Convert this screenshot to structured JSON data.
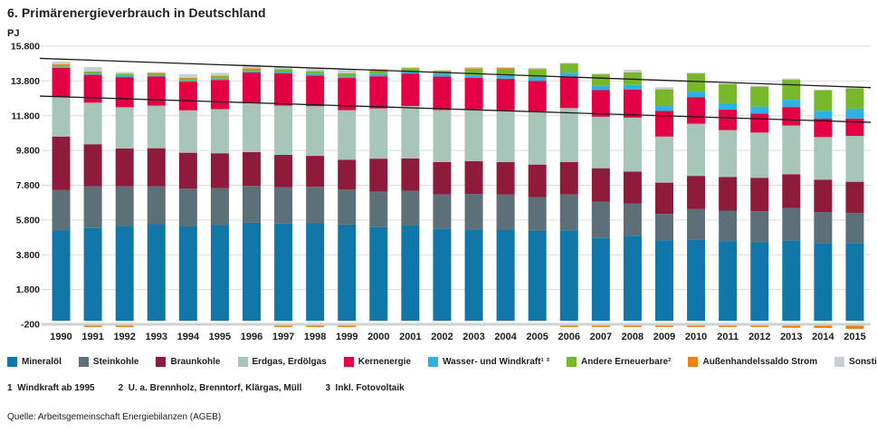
{
  "title": "6. Primärenergieverbrauch in Deutschland",
  "axis_unit": "PJ",
  "chart_data": {
    "type": "bar",
    "stacked": true,
    "title": "Primärenergieverbrauch in Deutschland",
    "unit": "PJ",
    "grid": "horizontal",
    "legend_position": "bottom",
    "ylim": [
      -200,
      15800
    ],
    "ytick_labels": [
      "15.800",
      "13.800",
      "11.800",
      "9.800",
      "7.800",
      "5.800",
      "3.800",
      "1.800",
      "-200"
    ],
    "ytick_values": [
      15800,
      13800,
      11800,
      9800,
      7800,
      5800,
      3800,
      1800,
      -200
    ],
    "categories": [
      "1990",
      "1991",
      "1992",
      "1993",
      "1994",
      "1995",
      "1996",
      "1997",
      "1998",
      "1999",
      "2000",
      "2001",
      "2002",
      "2003",
      "2004",
      "2005",
      "2006",
      "2007",
      "2008",
      "2009",
      "2010",
      "2011",
      "2012",
      "2013",
      "2014",
      "2015"
    ],
    "series": [
      {
        "key": "mineraloel",
        "label": "Mineralöl",
        "color": "#1177a9",
        "values": [
          5217,
          5330,
          5460,
          5560,
          5430,
          5530,
          5640,
          5600,
          5610,
          5540,
          5380,
          5480,
          5310,
          5250,
          5220,
          5170,
          5210,
          4760,
          4900,
          4640,
          4680,
          4590,
          4520,
          4630,
          4470,
          4480
        ]
      },
      {
        "key": "steinkohle",
        "label": "Steinkohle",
        "color": "#5d6f77",
        "values": [
          2306,
          2400,
          2280,
          2170,
          2180,
          2100,
          2120,
          2090,
          2100,
          2010,
          2060,
          2010,
          1960,
          2050,
          2040,
          1950,
          2060,
          2100,
          1840,
          1510,
          1750,
          1750,
          1790,
          1870,
          1790,
          1720
        ]
      },
      {
        "key": "braunkohle",
        "label": "Braunkohle",
        "color": "#8e1a3c",
        "values": [
          3080,
          2430,
          2170,
          2200,
          2060,
          2010,
          1950,
          1860,
          1780,
          1720,
          1890,
          1850,
          1870,
          1890,
          1870,
          1870,
          1870,
          1920,
          1850,
          1800,
          1910,
          1930,
          1920,
          1930,
          1860,
          1800
        ]
      },
      {
        "key": "erdgas",
        "label": "Erdgas, Erdölgas",
        "color": "#a8c5b9",
        "values": [
          2290,
          2390,
          2380,
          2450,
          2440,
          2540,
          2820,
          2830,
          2860,
          2850,
          2890,
          3020,
          2990,
          2990,
          2980,
          3040,
          3100,
          2960,
          3100,
          2650,
          3000,
          2700,
          2600,
          2810,
          2450,
          2640
        ]
      },
      {
        "key": "kernenergie",
        "label": "Kernenergie",
        "color": "#e40045",
        "values": [
          1668,
          1602,
          1730,
          1675,
          1651,
          1682,
          1763,
          1858,
          1764,
          1852,
          1851,
          1868,
          1921,
          1802,
          1823,
          1779,
          1826,
          1533,
          1623,
          1472,
          1533,
          1178,
          1085,
          1061,
          1060,
          1001
        ]
      },
      {
        "key": "wasser_wind",
        "label": "Wasser- und Windkraft¹ ³",
        "color": "#2cb2e5",
        "values": [
          58,
          53,
          62,
          64,
          66,
          72,
          69,
          73,
          79,
          86,
          128,
          135,
          152,
          158,
          183,
          193,
          215,
          250,
          260,
          286,
          317,
          373,
          412,
          417,
          460,
          570
        ]
      },
      {
        "key": "andere_erneuerbare",
        "label": "Andere Erneuerbare²",
        "color": "#77b829",
        "values": [
          130,
          135,
          138,
          140,
          145,
          150,
          155,
          160,
          170,
          180,
          190,
          200,
          215,
          370,
          420,
          470,
          540,
          690,
          720,
          960,
          1050,
          1100,
          1150,
          1150,
          1180,
          1160
        ]
      },
      {
        "key": "aussenhandel",
        "label": "Außenhandelssaldo Strom",
        "color": "#f08013",
        "values": [
          6,
          -20,
          -10,
          4,
          15,
          18,
          16,
          -15,
          -15,
          -20,
          7,
          8,
          4,
          16,
          9,
          17,
          -25,
          -30,
          -65,
          -42,
          -63,
          -69,
          -83,
          -120,
          -129,
          -185
        ]
      },
      {
        "key": "sonstige",
        "label": "Sonstige",
        "color": "#c8ced2",
        "values": [
          150,
          260,
          95,
          47,
          198,
          167,
          213,
          150,
          150,
          229,
          95,
          15,
          5,
          74,
          46,
          69,
          25,
          14,
          150,
          120,
          40,
          47,
          53,
          74,
          39,
          76
        ]
      }
    ],
    "trend_lines": [
      {
        "start_pj": 15100,
        "end_pj": 13420
      },
      {
        "start_pj": 12930,
        "end_pj": 11420
      }
    ]
  },
  "footnotes": [
    "1  Windkraft ab 1995",
    "2  U. a. Brennholz, Brenntorf, Klärgas, Müll",
    "3  Inkl. Fotovoltaik"
  ],
  "source": "Quelle: Arbeitsgemeinschaft Energiebilanzen (AGEB)"
}
